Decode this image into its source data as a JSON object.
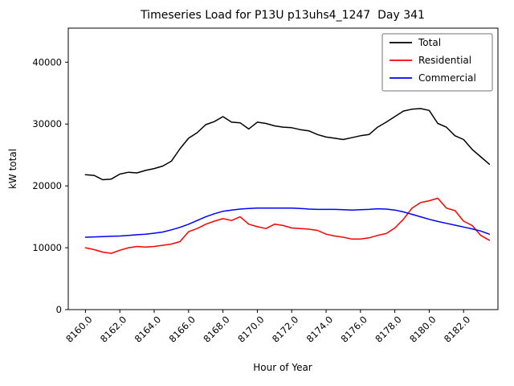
{
  "chart_data": {
    "type": "line",
    "title": "Timeseries Load for P13U p13uhs4_1247  Day 341",
    "xlabel": "Hour of Year",
    "ylabel": "kW total",
    "xlim": [
      8159.0,
      8184.0
    ],
    "ylim": [
      0,
      45500
    ],
    "grid": false,
    "legend_position": "upper right",
    "xticks": [
      8160,
      8162,
      8164,
      8166,
      8168,
      8170,
      8172,
      8174,
      8176,
      8178,
      8180,
      8182
    ],
    "xtick_labels": [
      "8160.0",
      "8162.0",
      "8164.0",
      "8166.0",
      "8168.0",
      "8170.0",
      "8172.0",
      "8174.0",
      "8176.0",
      "8178.0",
      "8180.0",
      "8182.0"
    ],
    "yticks": [
      0,
      10000,
      20000,
      30000,
      40000
    ],
    "ytick_labels": [
      "0",
      "10000",
      "20000",
      "30000",
      "40000"
    ],
    "x": [
      8160.0,
      8160.5,
      8161.0,
      8161.5,
      8162.0,
      8162.5,
      8163.0,
      8163.5,
      8164.0,
      8164.5,
      8165.0,
      8165.5,
      8166.0,
      8166.5,
      8167.0,
      8167.5,
      8168.0,
      8168.5,
      8169.0,
      8169.5,
      8170.0,
      8170.5,
      8171.0,
      8171.5,
      8172.0,
      8172.5,
      8173.0,
      8173.5,
      8174.0,
      8174.5,
      8175.0,
      8175.5,
      8176.0,
      8176.5,
      8177.0,
      8177.5,
      8178.0,
      8178.5,
      8179.0,
      8179.5,
      8180.0,
      8180.5,
      8181.0,
      8181.5,
      8182.0,
      8182.5,
      8183.0,
      8183.5
    ],
    "series": [
      {
        "name": "Total",
        "color": "#000000",
        "values": [
          21800,
          21700,
          21000,
          21100,
          21900,
          22200,
          22100,
          22500,
          22800,
          23200,
          24000,
          26000,
          27700,
          28600,
          29900,
          30400,
          31200,
          30300,
          30200,
          29200,
          30300,
          30100,
          29700,
          29500,
          29400,
          29100,
          28900,
          28300,
          27900,
          27700,
          27500,
          27800,
          28100,
          28300,
          29500,
          30300,
          31200,
          32100,
          32400,
          32500,
          32200,
          30100,
          29500,
          28100,
          27500,
          25900,
          24700,
          23500
        ]
      },
      {
        "name": "Residential",
        "color": "#ff0000",
        "values": [
          10000,
          9700,
          9300,
          9100,
          9600,
          10000,
          10200,
          10100,
          10200,
          10400,
          10600,
          11000,
          12600,
          13100,
          13800,
          14300,
          14700,
          14400,
          15000,
          13800,
          13400,
          13100,
          13800,
          13600,
          13200,
          13100,
          13000,
          12800,
          12200,
          11900,
          11700,
          11400,
          11400,
          11600,
          12000,
          12300,
          13200,
          14600,
          16400,
          17300,
          17600,
          18000,
          16400,
          16000,
          14300,
          13600,
          12000,
          11200
        ]
      },
      {
        "name": "Commercial",
        "color": "#0000ff",
        "values": [
          11700,
          11750,
          11800,
          11850,
          11900,
          12000,
          12100,
          12200,
          12350,
          12550,
          12900,
          13300,
          13800,
          14400,
          15000,
          15500,
          15900,
          16100,
          16250,
          16350,
          16400,
          16400,
          16400,
          16400,
          16400,
          16350,
          16250,
          16200,
          16200,
          16200,
          16150,
          16100,
          16150,
          16200,
          16300,
          16250,
          16100,
          15800,
          15400,
          15000,
          14600,
          14250,
          13950,
          13650,
          13350,
          13050,
          12700,
          12200
        ]
      }
    ]
  }
}
